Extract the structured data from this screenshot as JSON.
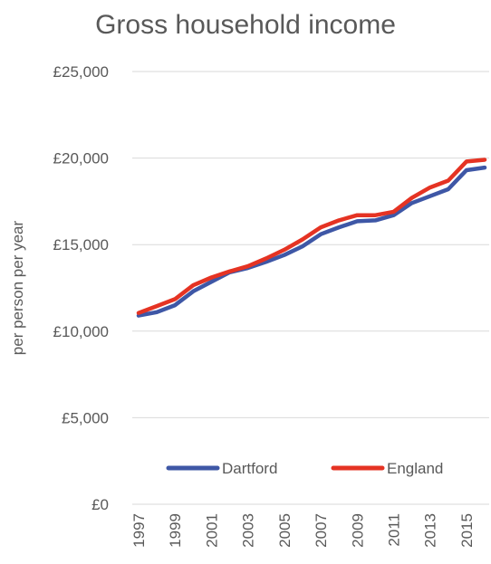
{
  "chart_data": {
    "type": "line",
    "title": "Gross household income",
    "xlabel": "",
    "ylabel": "per person per year",
    "x": [
      1997,
      1998,
      1999,
      2000,
      2001,
      2002,
      2003,
      2004,
      2005,
      2006,
      2007,
      2008,
      2009,
      2010,
      2011,
      2012,
      2013,
      2014,
      2015,
      2016
    ],
    "x_tick_labels": [
      "1997",
      "1999",
      "2001",
      "2003",
      "2005",
      "2007",
      "2009",
      "2011",
      "2013",
      "2015"
    ],
    "y_tick_labels": [
      "£0",
      "£5,000",
      "£10,000",
      "£15,000",
      "£20,000",
      "£25,000"
    ],
    "y_ticks": [
      0,
      5000,
      10000,
      15000,
      20000,
      25000
    ],
    "ylim": [
      0,
      25000
    ],
    "grid": true,
    "legend_position": "inside-bottom",
    "series": [
      {
        "name": "Dartford",
        "color": "#3e57a6",
        "values": [
          10900,
          11100,
          11500,
          12300,
          12850,
          13400,
          13650,
          14000,
          14400,
          14900,
          15600,
          16000,
          16350,
          16400,
          16700,
          17400,
          17800,
          18200,
          19300,
          19450
        ]
      },
      {
        "name": "England",
        "color": "#e53323",
        "values": [
          11050,
          11450,
          11850,
          12650,
          13100,
          13450,
          13750,
          14200,
          14700,
          15300,
          16000,
          16400,
          16700,
          16700,
          16900,
          17700,
          18300,
          18700,
          19800,
          19900
        ]
      }
    ]
  }
}
